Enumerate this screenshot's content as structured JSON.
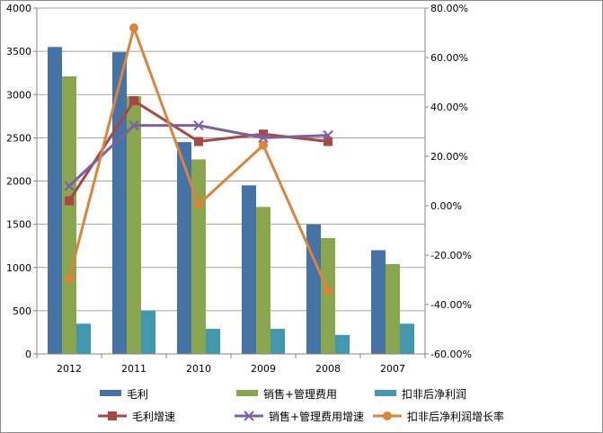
{
  "chart_data": {
    "type": "bar",
    "categories": [
      "2012",
      "2011",
      "2010",
      "2009",
      "2008",
      "2007"
    ],
    "ylim": [
      0,
      4000
    ],
    "y_ticks": [
      "0",
      "500",
      "1000",
      "1500",
      "2000",
      "2500",
      "3000",
      "3500",
      "4000"
    ],
    "y2lim": [
      -60,
      80
    ],
    "y2_ticks": [
      "-60.00%",
      "-40.00%",
      "-20.00%",
      "0.00%",
      "20.00%",
      "40.00%",
      "60.00%",
      "80.00%"
    ],
    "grid": true,
    "legend_position": "bottom",
    "series": [
      {
        "name": "毛利",
        "kind": "bar",
        "axis": "left",
        "color": "#4572a7",
        "values": [
          3550,
          3490,
          2450,
          1950,
          1500,
          1200
        ]
      },
      {
        "name": "销售+管理费用",
        "kind": "bar",
        "axis": "left",
        "color": "#89a54e",
        "values": [
          3210,
          2980,
          2250,
          1700,
          1340,
          1040
        ]
      },
      {
        "name": "扣非后净利润",
        "kind": "bar",
        "axis": "left",
        "color": "#4198af",
        "values": [
          350,
          500,
          290,
          290,
          220,
          350
        ]
      },
      {
        "name": "毛利增速",
        "kind": "line",
        "axis": "right",
        "color": "#aa4643",
        "marker": "square",
        "values": [
          2.0,
          42.5,
          26.0,
          29.0,
          26.0,
          null
        ]
      },
      {
        "name": "销售+管理费用增速",
        "kind": "line",
        "axis": "right",
        "color": "#7d60a0",
        "marker": "x",
        "values": [
          8.0,
          32.5,
          32.5,
          27.5,
          28.5,
          null
        ]
      },
      {
        "name": "扣非后净利润增长率",
        "kind": "line",
        "axis": "right",
        "color": "#db843d",
        "marker": "circle",
        "values": [
          -29.5,
          72.0,
          0.5,
          24.5,
          -34.5,
          null
        ]
      }
    ]
  }
}
